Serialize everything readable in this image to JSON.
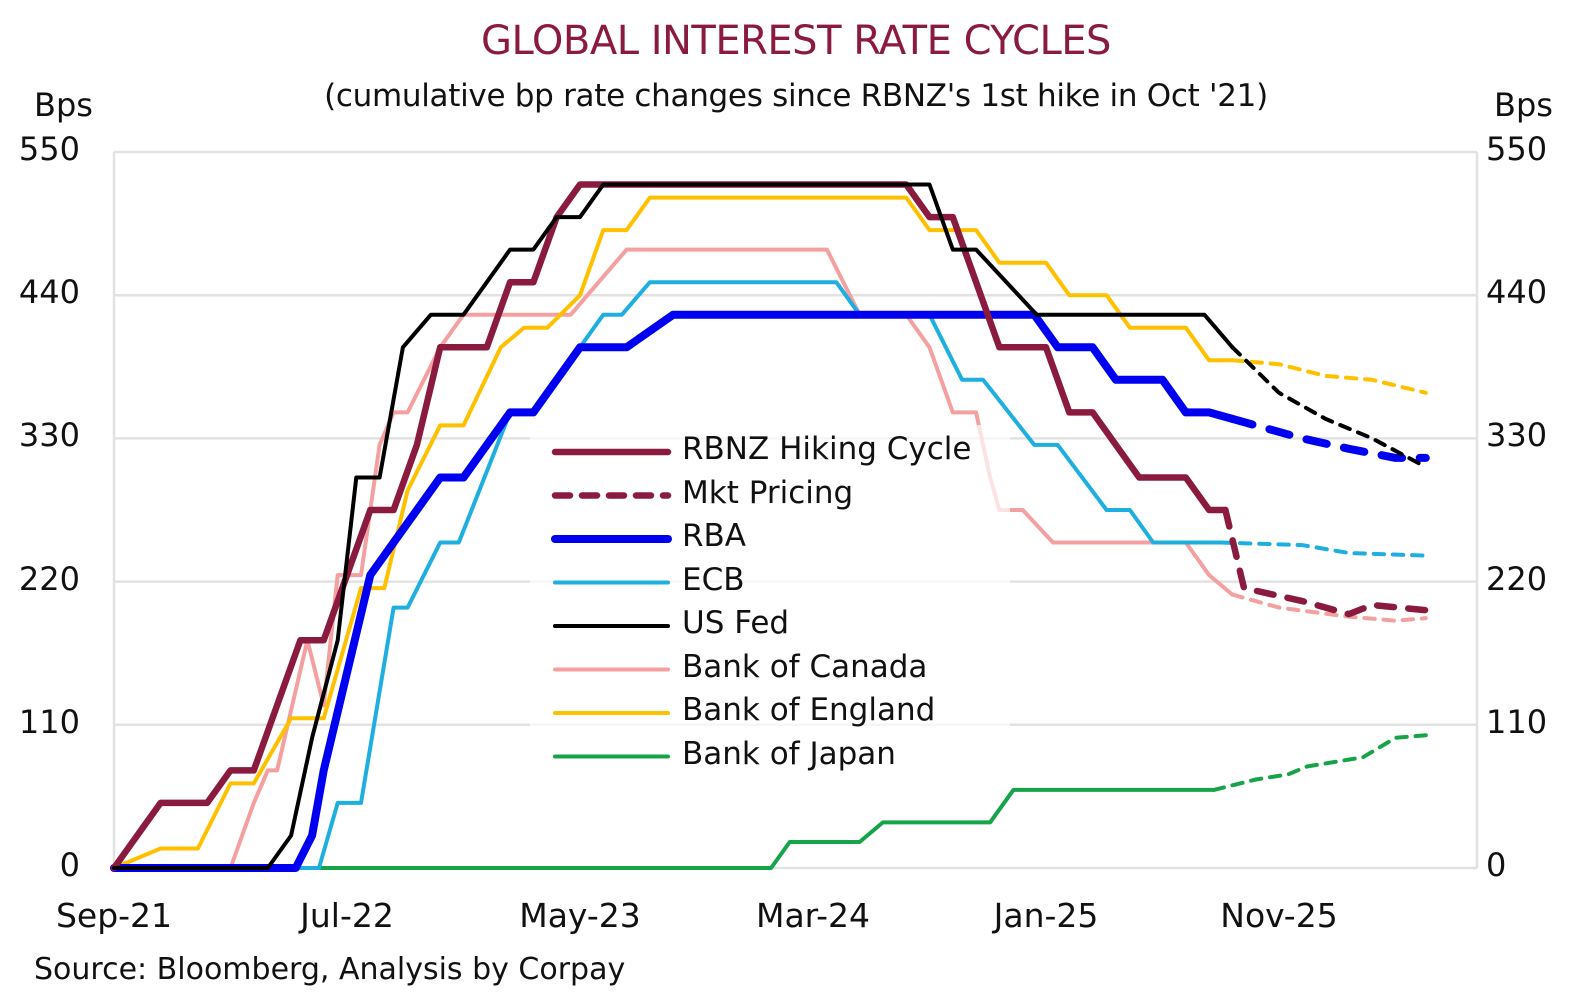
{
  "chart_data": {
    "type": "line",
    "title": "GLOBAL INTEREST RATE CYCLES",
    "subtitle": "(cumulative bp rate changes since RBNZ's 1st hike in Oct '21)",
    "ylabel_left": "Bps",
    "ylabel_right": "Bps",
    "ylim": [
      0,
      550
    ],
    "yticks": [
      "550",
      "440",
      "330",
      "220",
      "110",
      "0"
    ],
    "ytick_values": [
      550,
      440,
      330,
      220,
      110,
      0
    ],
    "xtick_labels": [
      "Sep-21",
      "Jul-22",
      "May-23",
      "Mar-24",
      "Jan-25",
      "Nov-25"
    ],
    "xtick_months": [
      0,
      10,
      20,
      30,
      40,
      50
    ],
    "xlim_months": [
      0,
      58
    ],
    "x_unit": "months since Sep-21",
    "grid": true,
    "legend_position": "center",
    "source": "Source: Bloomberg, Analysis by Corpay",
    "series": [
      {
        "name": "RBNZ Hiking Cycle",
        "color": "#8B1A3F",
        "style": "solid",
        "weight": "heavy",
        "legend": true,
        "points": [
          [
            0,
            0
          ],
          [
            2,
            50
          ],
          [
            4,
            50
          ],
          [
            5,
            75
          ],
          [
            6,
            75
          ],
          [
            8,
            175
          ],
          [
            9,
            175
          ],
          [
            10,
            225
          ],
          [
            11,
            275
          ],
          [
            12,
            275
          ],
          [
            13,
            325
          ],
          [
            14,
            400
          ],
          [
            16,
            400
          ],
          [
            17,
            450
          ],
          [
            18,
            450
          ],
          [
            19,
            500
          ],
          [
            20,
            525
          ],
          [
            34,
            525
          ],
          [
            35,
            500
          ],
          [
            36,
            500
          ],
          [
            38,
            400
          ],
          [
            40,
            400
          ],
          [
            41,
            350
          ],
          [
            42,
            350
          ],
          [
            44,
            300
          ],
          [
            46,
            300
          ],
          [
            47,
            275
          ],
          [
            47.7,
            275
          ]
        ]
      },
      {
        "name": "Mkt Pricing",
        "color": "#8B1A3F",
        "style": "dashed",
        "weight": "heavy",
        "legend": true,
        "points": [
          [
            47.7,
            275
          ],
          [
            48.5,
            215
          ],
          [
            51,
            205
          ],
          [
            53,
            195
          ],
          [
            54,
            202
          ],
          [
            56.3,
            198
          ]
        ]
      },
      {
        "name": "RBA",
        "color": "#0000F0",
        "style": "solid",
        "weight": "extra",
        "legend": true,
        "points": [
          [
            0,
            0
          ],
          [
            7.8,
            0
          ],
          [
            8.5,
            25
          ],
          [
            9,
            75
          ],
          [
            10,
            150
          ],
          [
            11,
            225
          ],
          [
            12,
            250
          ],
          [
            14,
            300
          ],
          [
            15,
            300
          ],
          [
            17,
            350
          ],
          [
            18,
            350
          ],
          [
            20,
            400
          ],
          [
            22,
            400
          ],
          [
            24,
            425
          ],
          [
            38,
            425
          ],
          [
            39.5,
            425
          ],
          [
            40.5,
            400
          ],
          [
            42,
            400
          ],
          [
            43,
            375
          ],
          [
            45,
            375
          ],
          [
            46,
            350
          ],
          [
            47,
            350
          ],
          [
            48,
            345
          ]
        ]
      },
      {
        "name": "RBA Mkt Pricing",
        "color": "#0000F0",
        "style": "dashed",
        "weight": "extra",
        "legend": false,
        "points": [
          [
            48,
            345
          ],
          [
            51,
            330
          ],
          [
            53,
            322
          ],
          [
            55,
            315
          ],
          [
            56.3,
            315
          ]
        ]
      },
      {
        "name": "ECB",
        "color": "#1EAEE0",
        "style": "solid",
        "weight": "normal",
        "legend": true,
        "points": [
          [
            0,
            0
          ],
          [
            8.8,
            0
          ],
          [
            9.6,
            50
          ],
          [
            10.6,
            50
          ],
          [
            12,
            200
          ],
          [
            12.6,
            200
          ],
          [
            14,
            250
          ],
          [
            14.8,
            250
          ],
          [
            17,
            350
          ],
          [
            18,
            350
          ],
          [
            21,
            425
          ],
          [
            21.8,
            425
          ],
          [
            23,
            450
          ],
          [
            31,
            450
          ],
          [
            32,
            425
          ],
          [
            35,
            425
          ],
          [
            36.4,
            375
          ],
          [
            37.3,
            375
          ],
          [
            39.5,
            325
          ],
          [
            40.5,
            325
          ],
          [
            42.6,
            275
          ],
          [
            43.6,
            275
          ],
          [
            44.6,
            250
          ],
          [
            47.5,
            250
          ]
        ]
      },
      {
        "name": "ECB Mkt Pricing",
        "color": "#1EAEE0",
        "style": "dashed",
        "weight": "normal",
        "legend": false,
        "points": [
          [
            47.5,
            250
          ],
          [
            51,
            248
          ],
          [
            53,
            242
          ],
          [
            56.3,
            240
          ]
        ]
      },
      {
        "name": "US Fed",
        "color": "#000000",
        "style": "solid",
        "weight": "normal",
        "legend": true,
        "points": [
          [
            0,
            0
          ],
          [
            6.6,
            0
          ],
          [
            7.6,
            25
          ],
          [
            8.5,
            100
          ],
          [
            9.6,
            175
          ],
          [
            10.4,
            300
          ],
          [
            11.4,
            300
          ],
          [
            12.4,
            400
          ],
          [
            13.6,
            425
          ],
          [
            15,
            425
          ],
          [
            17,
            475
          ],
          [
            18,
            475
          ],
          [
            19,
            500
          ],
          [
            20,
            500
          ],
          [
            21,
            525
          ],
          [
            35,
            525
          ],
          [
            36,
            475
          ],
          [
            37,
            475
          ],
          [
            39.6,
            425
          ],
          [
            46.8,
            425
          ],
          [
            48,
            400
          ]
        ]
      },
      {
        "name": "US Fed Mkt Pricing",
        "color": "#000000",
        "style": "dashed",
        "weight": "normal",
        "legend": false,
        "points": [
          [
            48,
            400
          ],
          [
            50,
            365
          ],
          [
            52,
            345
          ],
          [
            54,
            330
          ],
          [
            56.3,
            308
          ]
        ]
      },
      {
        "name": "Bank of Canada",
        "color": "#F4A0A0",
        "style": "solid",
        "weight": "normal",
        "legend": true,
        "points": [
          [
            0,
            0
          ],
          [
            5,
            0
          ],
          [
            6,
            50
          ],
          [
            6.6,
            75
          ],
          [
            7,
            75
          ],
          [
            8.3,
            175
          ],
          [
            9,
            125
          ],
          [
            9.6,
            225
          ],
          [
            10.6,
            225
          ],
          [
            11.4,
            325
          ],
          [
            12,
            350
          ],
          [
            12.6,
            350
          ],
          [
            14,
            400
          ],
          [
            15,
            425
          ],
          [
            19.6,
            425
          ],
          [
            22,
            475
          ],
          [
            30.6,
            475
          ],
          [
            32,
            425
          ],
          [
            34,
            425
          ],
          [
            35,
            400
          ],
          [
            36,
            350
          ],
          [
            37,
            350
          ],
          [
            37.6,
            300
          ],
          [
            38,
            275
          ],
          [
            39,
            275
          ],
          [
            40.3,
            250
          ],
          [
            46,
            250
          ],
          [
            47,
            225
          ],
          [
            48,
            210
          ]
        ]
      },
      {
        "name": "Bank of Canada Mkt Pricing",
        "color": "#F4A0A0",
        "style": "dashed",
        "weight": "normal",
        "legend": false,
        "points": [
          [
            48,
            210
          ],
          [
            50,
            200
          ],
          [
            53,
            193
          ],
          [
            55,
            190
          ],
          [
            56.3,
            192
          ]
        ]
      },
      {
        "name": "Bank of England",
        "color": "#FFC000",
        "style": "solid",
        "weight": "normal",
        "legend": true,
        "points": [
          [
            0,
            0
          ],
          [
            2,
            15
          ],
          [
            3.6,
            15
          ],
          [
            5,
            65
          ],
          [
            6,
            65
          ],
          [
            7.6,
            115
          ],
          [
            9,
            115
          ],
          [
            10.6,
            215
          ],
          [
            11.6,
            215
          ],
          [
            12.6,
            290
          ],
          [
            14,
            340
          ],
          [
            15,
            340
          ],
          [
            16.6,
            400
          ],
          [
            17.6,
            415
          ],
          [
            18.6,
            415
          ],
          [
            20,
            440
          ],
          [
            21,
            490
          ],
          [
            22,
            490
          ],
          [
            23,
            515
          ],
          [
            34,
            515
          ],
          [
            35,
            490
          ],
          [
            36,
            490
          ],
          [
            37,
            490
          ],
          [
            38,
            465
          ],
          [
            40,
            465
          ],
          [
            41,
            440
          ],
          [
            42.6,
            440
          ],
          [
            43.6,
            415
          ],
          [
            46,
            415
          ],
          [
            47,
            390
          ],
          [
            48,
            390
          ]
        ]
      },
      {
        "name": "Bank of England Mkt Pricing",
        "color": "#FFC000",
        "style": "dashed",
        "weight": "normal",
        "legend": false,
        "points": [
          [
            48,
            390
          ],
          [
            50,
            387
          ],
          [
            52,
            378
          ],
          [
            54,
            375
          ],
          [
            56.3,
            365
          ]
        ]
      },
      {
        "name": "Bank of Japan",
        "color": "#17A34A",
        "style": "solid",
        "weight": "normal",
        "legend": true,
        "points": [
          [
            0,
            0
          ],
          [
            28.2,
            0
          ],
          [
            29,
            20
          ],
          [
            32,
            20
          ],
          [
            33,
            35
          ],
          [
            37.6,
            35
          ],
          [
            38.6,
            60
          ],
          [
            46,
            60
          ],
          [
            47.2,
            60
          ]
        ]
      },
      {
        "name": "Bank of Japan Mkt Pricing",
        "color": "#17A34A",
        "style": "dashed",
        "weight": "normal",
        "legend": false,
        "points": [
          [
            47.2,
            60
          ],
          [
            49,
            68
          ],
          [
            50.4,
            72
          ],
          [
            51.2,
            78
          ],
          [
            53.6,
            85
          ],
          [
            55,
            100
          ],
          [
            56.3,
            102
          ]
        ]
      }
    ]
  }
}
